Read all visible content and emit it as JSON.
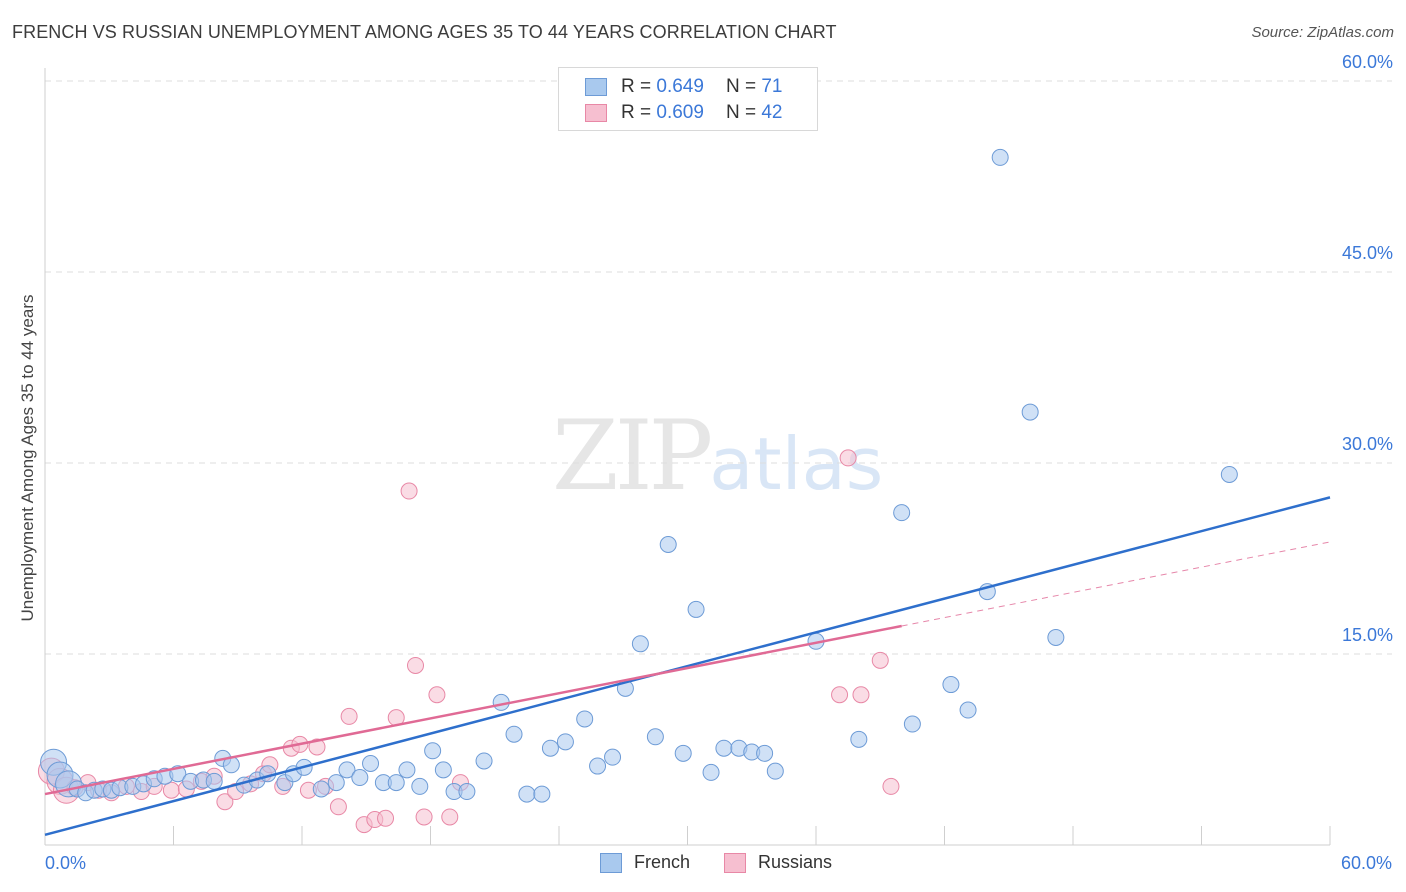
{
  "header": {
    "title": "FRENCH VS RUSSIAN UNEMPLOYMENT AMONG AGES 35 TO 44 YEARS CORRELATION CHART",
    "source": "Source: ZipAtlas.com"
  },
  "watermark": {
    "zip": "ZIP",
    "atlas": "atlas"
  },
  "legend_top": {
    "rows": [
      {
        "r_label": "R = ",
        "r_value": "0.649",
        "n_label": "N = ",
        "n_value": "71"
      },
      {
        "r_label": "R = ",
        "r_value": "0.609",
        "n_label": "N = ",
        "n_value": "42"
      }
    ]
  },
  "legend_bottom": {
    "items": [
      "French",
      "Russians"
    ]
  },
  "colors": {
    "french_fill": "#a9c9ee",
    "french_stroke": "#6d9bd6",
    "french_line": "#2e6fcc",
    "russian_fill": "#f6bfd0",
    "russian_stroke": "#e888a6",
    "russian_line": "#e06a95",
    "tick_label": "#3b78d8",
    "grid": "#dddddd"
  },
  "chart_data": {
    "type": "scatter",
    "title": "FRENCH VS RUSSIAN UNEMPLOYMENT AMONG AGES 35 TO 44 YEARS CORRELATION CHART",
    "xlabel": "",
    "ylabel": "Unemployment Among Ages 35 to 44 years",
    "xlim": [
      0,
      60
    ],
    "ylim": [
      0,
      60
    ],
    "x_tick_labels": [
      "0.0%",
      "60.0%"
    ],
    "y_ticks": [
      15,
      30,
      45,
      60
    ],
    "y_tick_labels": [
      "15.0%",
      "30.0%",
      "45.0%",
      "60.0%"
    ],
    "grid": true,
    "legend_position": "top-center",
    "series": [
      {
        "name": "French",
        "r": 0.649,
        "n": 71,
        "trend": {
          "x": [
            0,
            60
          ],
          "y": [
            0.8,
            27.3
          ]
        },
        "points": [
          [
            0.4,
            6.5
          ],
          [
            0.7,
            5.5
          ],
          [
            1.1,
            4.8
          ],
          [
            1.5,
            4.4
          ],
          [
            1.9,
            4.1
          ],
          [
            2.3,
            4.3
          ],
          [
            2.7,
            4.4
          ],
          [
            3.1,
            4.3
          ],
          [
            3.5,
            4.5
          ],
          [
            4.1,
            4.6
          ],
          [
            4.6,
            4.8
          ],
          [
            5.1,
            5.2
          ],
          [
            5.6,
            5.4
          ],
          [
            6.2,
            5.6
          ],
          [
            6.8,
            5.0
          ],
          [
            7.4,
            5.1
          ],
          [
            7.9,
            5.0
          ],
          [
            8.3,
            6.8
          ],
          [
            8.7,
            6.3
          ],
          [
            9.3,
            4.7
          ],
          [
            9.9,
            5.1
          ],
          [
            10.4,
            5.6
          ],
          [
            11.2,
            4.9
          ],
          [
            11.6,
            5.6
          ],
          [
            12.1,
            6.1
          ],
          [
            12.9,
            4.4
          ],
          [
            13.6,
            4.9
          ],
          [
            14.1,
            5.9
          ],
          [
            14.7,
            5.3
          ],
          [
            15.2,
            6.4
          ],
          [
            15.8,
            4.9
          ],
          [
            16.4,
            4.9
          ],
          [
            16.9,
            5.9
          ],
          [
            17.5,
            4.6
          ],
          [
            18.1,
            7.4
          ],
          [
            18.6,
            5.9
          ],
          [
            19.1,
            4.2
          ],
          [
            19.7,
            4.2
          ],
          [
            20.5,
            6.6
          ],
          [
            21.3,
            11.2
          ],
          [
            21.9,
            8.7
          ],
          [
            22.5,
            4.0
          ],
          [
            23.2,
            4.0
          ],
          [
            23.6,
            7.6
          ],
          [
            24.3,
            8.1
          ],
          [
            25.2,
            9.9
          ],
          [
            25.8,
            6.2
          ],
          [
            26.5,
            6.9
          ],
          [
            27.1,
            12.3
          ],
          [
            27.8,
            15.8
          ],
          [
            28.5,
            8.5
          ],
          [
            29.1,
            23.6
          ],
          [
            29.8,
            7.2
          ],
          [
            30.4,
            18.5
          ],
          [
            31.1,
            5.7
          ],
          [
            31.7,
            7.6
          ],
          [
            32.4,
            7.6
          ],
          [
            33.0,
            7.3
          ],
          [
            33.6,
            7.2
          ],
          [
            34.1,
            5.8
          ],
          [
            36.0,
            16.0
          ],
          [
            38.0,
            8.3
          ],
          [
            40.0,
            26.1
          ],
          [
            40.5,
            9.5
          ],
          [
            42.3,
            12.6
          ],
          [
            43.1,
            10.6
          ],
          [
            44.0,
            19.9
          ],
          [
            44.6,
            54.0
          ],
          [
            46.0,
            34.0
          ],
          [
            47.2,
            16.3
          ],
          [
            55.3,
            29.1
          ]
        ]
      },
      {
        "name": "Russians",
        "r": 0.609,
        "n": 42,
        "trend": {
          "x": [
            0,
            40
          ],
          "y": [
            4.0,
            17.2
          ]
        },
        "points": [
          [
            0.3,
            5.8
          ],
          [
            0.7,
            5.0
          ],
          [
            1.0,
            4.3
          ],
          [
            1.4,
            4.5
          ],
          [
            2.0,
            4.9
          ],
          [
            2.5,
            4.3
          ],
          [
            3.1,
            4.1
          ],
          [
            3.8,
            4.6
          ],
          [
            4.5,
            4.2
          ],
          [
            5.1,
            4.6
          ],
          [
            5.9,
            4.3
          ],
          [
            6.6,
            4.4
          ],
          [
            7.3,
            5.0
          ],
          [
            7.9,
            5.4
          ],
          [
            8.4,
            3.4
          ],
          [
            8.9,
            4.2
          ],
          [
            9.6,
            4.8
          ],
          [
            10.2,
            5.6
          ],
          [
            10.5,
            6.3
          ],
          [
            11.1,
            4.6
          ],
          [
            11.5,
            7.6
          ],
          [
            11.9,
            7.9
          ],
          [
            12.3,
            4.3
          ],
          [
            12.7,
            7.7
          ],
          [
            13.1,
            4.6
          ],
          [
            13.7,
            3.0
          ],
          [
            14.2,
            10.1
          ],
          [
            14.9,
            1.6
          ],
          [
            15.4,
            2.0
          ],
          [
            15.9,
            2.1
          ],
          [
            16.4,
            10.0
          ],
          [
            17.0,
            27.8
          ],
          [
            17.3,
            14.1
          ],
          [
            17.7,
            2.2
          ],
          [
            18.3,
            11.8
          ],
          [
            18.9,
            2.2
          ],
          [
            19.4,
            4.9
          ],
          [
            37.1,
            11.8
          ],
          [
            37.5,
            30.4
          ],
          [
            38.1,
            11.8
          ],
          [
            39.0,
            14.5
          ],
          [
            39.5,
            4.6
          ]
        ]
      }
    ]
  }
}
